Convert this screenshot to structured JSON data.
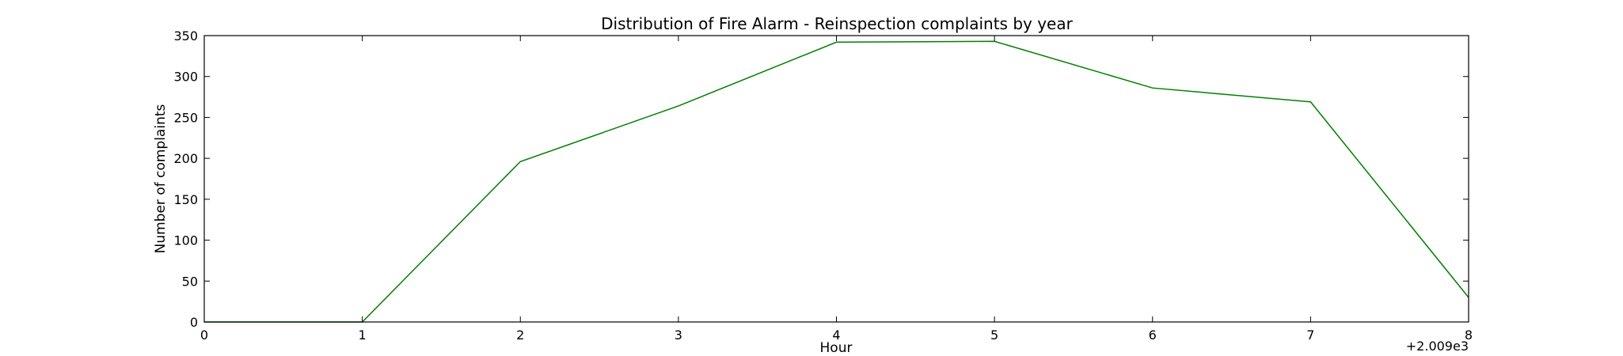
{
  "chart_data": {
    "type": "line",
    "title": "Distribution of  Fire Alarm - Reinspection complaints by year",
    "xlabel": "Hour",
    "ylabel": "Number of complaints",
    "x_offset_label": "+2.009e3",
    "xlim": [
      0,
      8
    ],
    "ylim": [
      0,
      350
    ],
    "x_ticks": [
      0,
      1,
      2,
      3,
      4,
      5,
      6,
      7,
      8
    ],
    "y_ticks": [
      0,
      50,
      100,
      150,
      200,
      250,
      300,
      350
    ],
    "grid": false,
    "legend": "none",
    "series": [
      {
        "color": "#008000",
        "x": [
          0,
          1,
          2,
          3,
          4,
          5,
          6,
          7,
          8
        ],
        "values": [
          0,
          0,
          196,
          264,
          342,
          343,
          286,
          269,
          30
        ]
      }
    ]
  }
}
